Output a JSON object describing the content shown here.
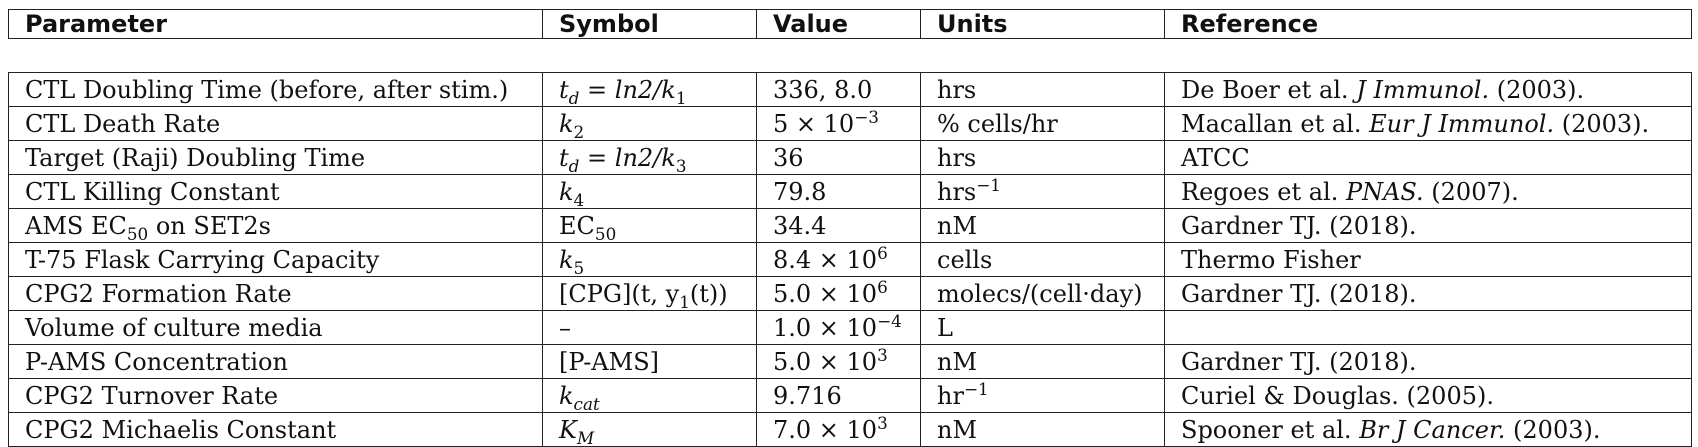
{
  "headers": {
    "parameter": "Parameter",
    "symbol": "Symbol",
    "value": "Value",
    "units": "Units",
    "reference": "Reference"
  },
  "rows": [
    {
      "parameter": "CTL Doubling Time (before, after stim.)",
      "symbol": {
        "pre": "t",
        "sub": "d",
        "mid": " = ln2/k",
        "sub2": "1"
      },
      "value": {
        "text": "336, 8.0"
      },
      "units": {
        "text": "hrs"
      },
      "reference": {
        "authors": "De Boer et al. ",
        "journal": "J Immunol.",
        "year": " (2003)."
      }
    },
    {
      "parameter": "CTL Death Rate",
      "symbol": {
        "pre": "k",
        "sub": "2"
      },
      "value": {
        "base": "5 × 10",
        "exp": "−3"
      },
      "units": {
        "text": "% cells/hr"
      },
      "reference": {
        "authors": "Macallan et al. ",
        "journal": "Eur J Immunol.",
        "year": " (2003)."
      }
    },
    {
      "parameter": "Target (Raji) Doubling Time",
      "symbol": {
        "pre": "t",
        "sub": "d",
        "mid": " = ln2/k",
        "sub2": "3"
      },
      "value": {
        "text": "36"
      },
      "units": {
        "text": "hrs"
      },
      "reference": {
        "authors": "ATCC"
      }
    },
    {
      "parameter": "CTL Killing Constant",
      "symbol": {
        "pre": "k",
        "sub": "4"
      },
      "value": {
        "text": "79.8"
      },
      "units": {
        "base": "hrs",
        "exp": "−1"
      },
      "reference": {
        "authors": "Regoes et al. ",
        "journal": "PNAS.",
        "year": " (2007)."
      }
    },
    {
      "parameter": {
        "pre": "AMS EC",
        "sub": "50",
        "post": " on SET2s"
      },
      "symbol": {
        "pre": "EC",
        "sub": "50",
        "roman": true
      },
      "value": {
        "text": "34.4"
      },
      "units": {
        "text": "nM"
      },
      "reference": {
        "authors": "Gardner TJ. (2018)."
      }
    },
    {
      "parameter": "T-75 Flask Carrying Capacity",
      "symbol": {
        "pre": "k",
        "sub": "5"
      },
      "value": {
        "base": "8.4 × 10",
        "exp": "6"
      },
      "units": {
        "text": "cells"
      },
      "reference": {
        "authors": "Thermo Fisher"
      }
    },
    {
      "parameter": "CPG2 Formation Rate",
      "symbol": {
        "text": "[CPG](t, y",
        "sub": "1",
        "post": "(t))"
      },
      "value": {
        "base": "5.0 × 10",
        "exp": "6"
      },
      "units": {
        "text": "molecs/(cell·day)"
      },
      "reference": {
        "authors": "Gardner TJ. (2018)."
      }
    },
    {
      "parameter": "Volume of culture media",
      "symbol": {
        "text": "–"
      },
      "value": {
        "base": "1.0 × 10",
        "exp": "−4"
      },
      "units": {
        "text": "L"
      },
      "reference": {
        "authors": ""
      }
    },
    {
      "parameter": "P-AMS Concentration",
      "symbol": {
        "text": "[P-AMS]"
      },
      "value": {
        "base": "5.0 × 10",
        "exp": "3"
      },
      "units": {
        "text": "nM"
      },
      "reference": {
        "authors": "Gardner TJ. (2018)."
      }
    },
    {
      "parameter": "CPG2 Turnover Rate",
      "symbol": {
        "pre": "k",
        "sub": "cat"
      },
      "value": {
        "text": "9.716"
      },
      "units": {
        "base": "hr",
        "exp": "−1"
      },
      "reference": {
        "authors": "Curiel & Douglas. (2005)."
      }
    },
    {
      "parameter": "CPG2 Michaelis Constant",
      "symbol": {
        "pre": "K",
        "sub": "M"
      },
      "value": {
        "base": "7.0 × 10",
        "exp": "3"
      },
      "units": {
        "text": "nM"
      },
      "reference": {
        "authors": "Spooner et al. ",
        "journal": "Br J Cancer.",
        "year": " (2003)."
      }
    }
  ]
}
